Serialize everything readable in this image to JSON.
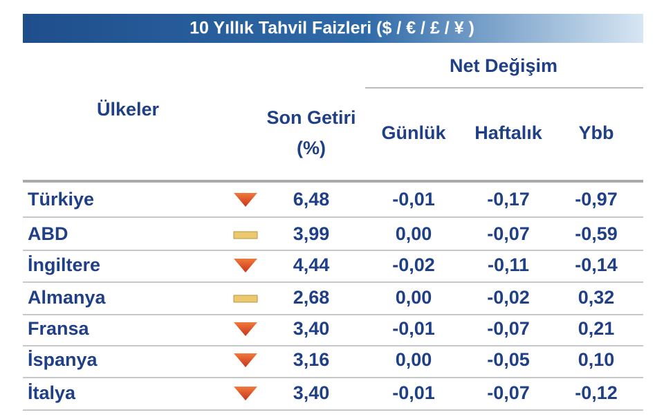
{
  "title": "10 Yıllık Tahvil Faizleri ($ / € / £ / ¥ )",
  "header": {
    "country": "Ülkeler",
    "yield": [
      "Son Getiri",
      "(%)"
    ],
    "net_change": "Net Değişim",
    "daily": "Günlük",
    "weekly": "Haftalık",
    "ytd": "Ybb"
  },
  "table": {
    "rows": [
      {
        "country": "Türkiye",
        "icon": "down",
        "yield": "6,48",
        "daily": "-0,01",
        "weekly": "-0,17",
        "ytd": "-0,97"
      },
      {
        "country": "ABD",
        "icon": "flat",
        "yield": "3,99",
        "daily": "0,00",
        "weekly": "-0,07",
        "ytd": "-0,59"
      },
      {
        "country": "İngiltere",
        "icon": "down",
        "yield": "4,44",
        "daily": "-0,02",
        "weekly": "-0,11",
        "ytd": "-0,14"
      },
      {
        "country": "Almanya",
        "icon": "flat",
        "yield": "2,68",
        "daily": "0,00",
        "weekly": "-0,02",
        "ytd": "0,32"
      },
      {
        "country": "Fransa",
        "icon": "down",
        "yield": "3,40",
        "daily": "-0,01",
        "weekly": "-0,07",
        "ytd": "0,21"
      },
      {
        "country": "İspanya",
        "icon": "down",
        "yield": "3,16",
        "daily": "0,00",
        "weekly": "-0,05",
        "ytd": "0,10"
      },
      {
        "country": "İtalya",
        "icon": "down",
        "yield": "3,40",
        "daily": "-0,01",
        "weekly": "-0,07",
        "ytd": "-0,12"
      }
    ]
  }
}
